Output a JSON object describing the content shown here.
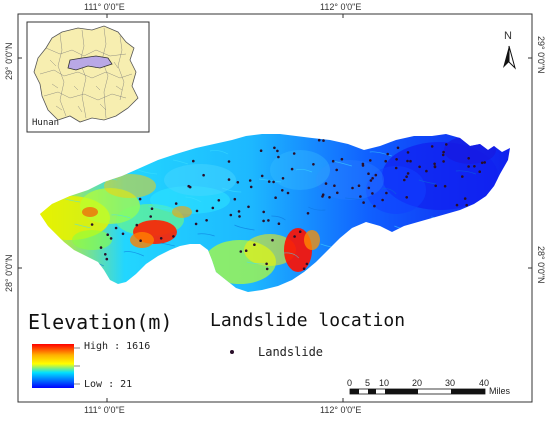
{
  "map": {
    "top_coords": [
      "111° 0'0\"E",
      "112° 0'0\"E"
    ],
    "bottom_coords": [
      "111° 0'0\"E",
      "112° 0'0\"E"
    ],
    "left_coords": [
      "29° 0'0\"N",
      "28° 0'0\"N"
    ],
    "right_coords": [
      "29° 0'0\"N",
      "28° 0'0\"N"
    ],
    "north_label": "N",
    "inset_label": "Hunan"
  },
  "legend": {
    "elevation_title": "Elevation(m)",
    "high_label": "High : 1616",
    "low_label": "Low : 21",
    "landslide_title": "Landslide location",
    "landslide_item": "Landslide"
  },
  "scale": {
    "ticks": [
      "0",
      "5",
      "10",
      "20",
      "30",
      "40"
    ],
    "unit": "Miles"
  },
  "colors": {
    "high": "#ff0000",
    "mid_high": "#ffff00",
    "mid": "#00c8ff",
    "low": "#0000ff",
    "landslide_point": "#2a0f2a",
    "inset_fill": "#f7eeb0",
    "inset_highlight": "#b9a8e6"
  }
}
